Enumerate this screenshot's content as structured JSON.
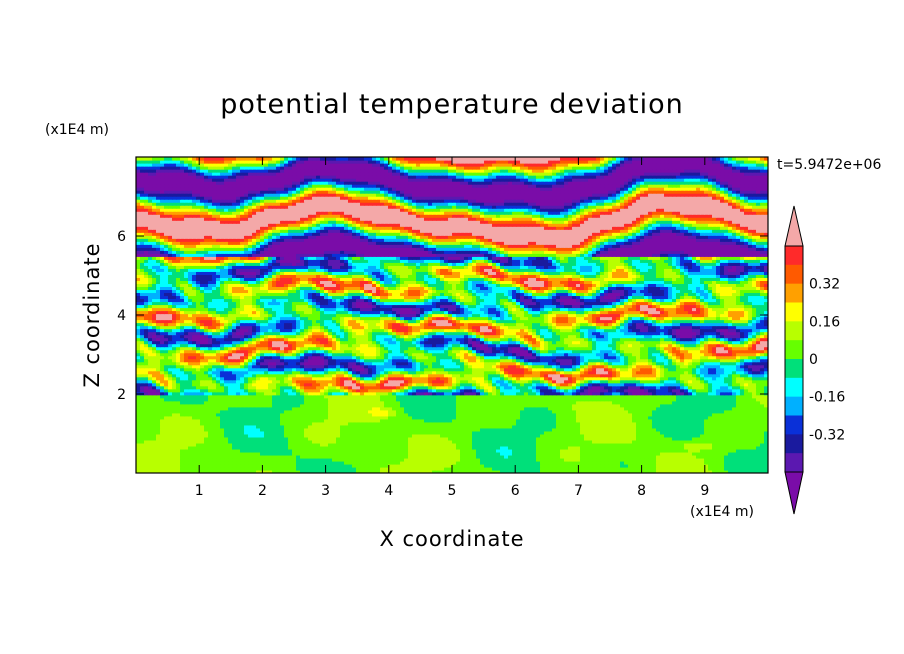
{
  "chart_data": {
    "type": "heatmap",
    "title": "potential temperature deviation",
    "xlabel": "X coordinate",
    "ylabel": "Z coordinate",
    "x_unit": "(x1E4 m)",
    "y_unit": "(x1E4 m)",
    "time_label": "t=5.9472e+06",
    "xlim": [
      0,
      10
    ],
    "ylim": [
      0,
      8
    ],
    "x_ticks": [
      "1",
      "2",
      "3",
      "4",
      "5",
      "6",
      "7",
      "8",
      "9"
    ],
    "y_ticks": [
      "2",
      "4",
      "6"
    ],
    "colorbar": {
      "levels": [
        -0.48,
        -0.4,
        -0.32,
        -0.24,
        -0.16,
        -0.08,
        0,
        0.08,
        0.16,
        0.24,
        0.32,
        0.4,
        0.48
      ],
      "colors": [
        "#7a0ca8",
        "#5b18b0",
        "#1a1a9e",
        "#0a30d8",
        "#00b0ff",
        "#00ffff",
        "#00e07a",
        "#66ff00",
        "#b8ff00",
        "#ffff00",
        "#ffa000",
        "#ff5a00",
        "#ff2a2a",
        "#f4a8a8"
      ],
      "tick_labels": [
        "0.32",
        "0.16",
        "0",
        "-0.16",
        "-0.32"
      ],
      "tick_values": [
        0.32,
        0.16,
        0,
        -0.16,
        -0.32
      ],
      "extend": "both"
    },
    "regions": [
      {
        "z_range": [
          0,
          2.0
        ],
        "description_values": [
          0,
          0.08,
          0.16
        ]
      },
      {
        "z_range": [
          2.0,
          5.5
        ],
        "description_values": [
          -0.48,
          0.48
        ]
      },
      {
        "z_range": [
          5.5,
          8.0
        ],
        "description_values": [
          -0.48,
          0.48
        ]
      }
    ]
  }
}
